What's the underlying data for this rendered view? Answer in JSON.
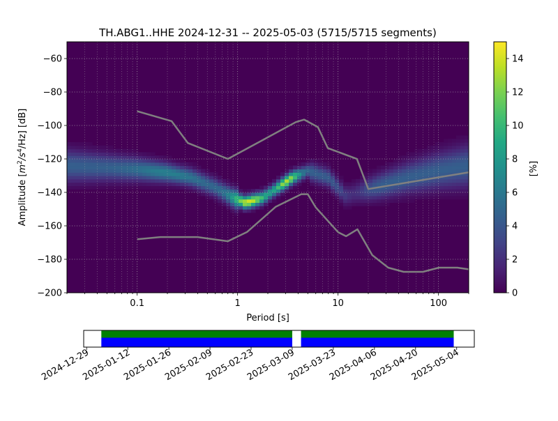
{
  "chart_data": [
    {
      "type": "heatmap",
      "title": "TH.ABG1..HHE   2024-12-31 -- 2025-05-03  (5715/5715 segments)",
      "xlabel": "Period [s]",
      "ylabel": "Amplitude [$m^2/s^4/Hz$] [dB]",
      "ylabel_parts": {
        "prefix": "Amplitude [",
        "m": "m",
        "m_exp": "2",
        "mid": "/s",
        "s_exp": "4",
        "suffix": "/Hz] [dB]"
      },
      "x_scale": "log",
      "xlim": [
        0.02,
        200
      ],
      "ylim": [
        -200,
        -50
      ],
      "xticks": [
        0.1,
        1,
        10,
        100
      ],
      "xtick_labels": [
        "0.1",
        "1",
        "10",
        "100"
      ],
      "yticks": [
        -200,
        -180,
        -160,
        -140,
        -120,
        -100,
        -80,
        -60
      ],
      "ytick_labels": [
        "−200",
        "−180",
        "−160",
        "−140",
        "−120",
        "−100",
        "−80",
        "−60"
      ],
      "grid": true,
      "colormap": "viridis",
      "colorbar": {
        "label": "[%]",
        "range": [
          0,
          15
        ],
        "ticks": [
          0,
          2,
          4,
          6,
          8,
          10,
          12,
          14
        ],
        "tick_labels": [
          "0",
          "2",
          "4",
          "6",
          "8",
          "10",
          "12",
          "14"
        ]
      },
      "psd_mode_path": [
        {
          "period": 0.02,
          "db": -124
        },
        {
          "period": 0.05,
          "db": -125
        },
        {
          "period": 0.1,
          "db": -126
        },
        {
          "period": 0.2,
          "db": -128
        },
        {
          "period": 0.35,
          "db": -131
        },
        {
          "period": 0.6,
          "db": -137
        },
        {
          "period": 0.9,
          "db": -143
        },
        {
          "period": 1.2,
          "db": -146
        },
        {
          "period": 1.8,
          "db": -143
        },
        {
          "period": 2.5,
          "db": -137
        },
        {
          "period": 3.5,
          "db": -131
        },
        {
          "period": 5,
          "db": -127
        },
        {
          "period": 8,
          "db": -131
        },
        {
          "period": 12,
          "db": -142
        },
        {
          "period": 20,
          "db": -138
        },
        {
          "period": 50,
          "db": -131
        },
        {
          "period": 100,
          "db": -127
        },
        {
          "period": 200,
          "db": -124
        }
      ],
      "nhnm": {
        "period": [
          0.1,
          0.22,
          0.32,
          0.8,
          3.8,
          4.6,
          6.3,
          7.9,
          15.4,
          20,
          200
        ],
        "db": [
          -91.5,
          -97.4,
          -110.5,
          -120,
          -98,
          -96.5,
          -101,
          -113.5,
          -120,
          -138,
          -128
        ]
      },
      "nlnm": {
        "period": [
          0.1,
          0.17,
          0.4,
          0.8,
          1.24,
          2.4,
          4.3,
          5,
          6,
          10,
          12,
          15.6,
          21.9,
          31.6,
          45,
          70,
          101,
          154,
          200
        ],
        "db": [
          -168,
          -166.7,
          -166.7,
          -169.2,
          -163.7,
          -148.6,
          -141.1,
          -141.1,
          -149,
          -163.8,
          -166.2,
          -162.1,
          -177.5,
          -185,
          -187.5,
          -187.5,
          -185,
          -185,
          -186
        ]
      }
    },
    {
      "type": "timeline",
      "xlim": [
        "2024-12-28",
        "2025-05-10"
      ],
      "xtick_labels": [
        "2024-12-29",
        "2025-01-12",
        "2025-01-26",
        "2025-02-09",
        "2025-02-23",
        "2025-03-09",
        "2025-03-23",
        "2025-04-06",
        "2025-04-20",
        "2025-05-04"
      ],
      "coverage_segments": [
        {
          "start": "2025-01-03",
          "end": "2025-03-09"
        },
        {
          "start": "2025-03-12",
          "end": "2025-05-03"
        }
      ],
      "colors": {
        "processed": "#008000",
        "available": "#0000ff"
      }
    }
  ]
}
